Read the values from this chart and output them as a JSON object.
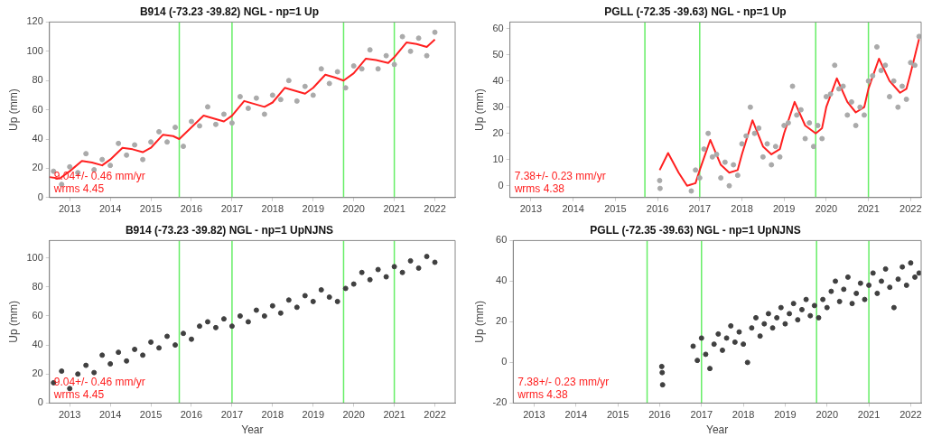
{
  "chart_data": [
    {
      "type": "scatter",
      "title": "B914 (-73.23 -39.82) NGL - np=1 Up",
      "ylabel": "Up (mm)",
      "xlim": [
        2012.5,
        2022.5
      ],
      "xticks": [
        2013,
        2014,
        2015,
        2016,
        2017,
        2018,
        2019,
        2020,
        2021,
        2022
      ],
      "ylim": [
        0,
        120
      ],
      "yticks": [
        0,
        20,
        40,
        60,
        80,
        100,
        120
      ],
      "marker": "circle",
      "ref_lines": [
        {
          "axis": "x",
          "value": 2015.7,
          "color": "#66ee66"
        },
        {
          "axis": "x",
          "value": 2017.0,
          "color": "#66ee66"
        },
        {
          "axis": "x",
          "value": 2019.75,
          "color": "#66ee66"
        },
        {
          "axis": "x",
          "value": 2021.0,
          "color": "#66ee66"
        }
      ],
      "annotations": [
        "9.04+/- 0.46 mm/yr",
        "wrms 4.45"
      ],
      "series": [
        {
          "type": "scatter",
          "color": "#aaaaaa",
          "x": [
            2012.6,
            2012.8,
            2013.0,
            2013.2,
            2013.4,
            2013.6,
            2013.8,
            2014.0,
            2014.2,
            2014.4,
            2014.6,
            2014.8,
            2015.0,
            2015.2,
            2015.4,
            2015.6,
            2015.8,
            2016.0,
            2016.2,
            2016.4,
            2016.6,
            2016.8,
            2017.0,
            2017.2,
            2017.4,
            2017.6,
            2017.8,
            2018.0,
            2018.2,
            2018.4,
            2018.6,
            2018.8,
            2019.0,
            2019.2,
            2019.4,
            2019.6,
            2019.8,
            2020.0,
            2020.2,
            2020.4,
            2020.6,
            2020.8,
            2021.0,
            2021.2,
            2021.4,
            2021.6,
            2021.8,
            2022.0
          ],
          "values": [
            18,
            9,
            21,
            17,
            30,
            19,
            26,
            22,
            37,
            29,
            36,
            26,
            38,
            45,
            38,
            48,
            35,
            52,
            49,
            62,
            50,
            57,
            51,
            69,
            61,
            68,
            57,
            70,
            67,
            80,
            66,
            76,
            70,
            88,
            78,
            86,
            75,
            90,
            88,
            101,
            88,
            97,
            91,
            110,
            100,
            109,
            97,
            113
          ]
        },
        {
          "type": "line",
          "color": "#ff2020",
          "marker": "none",
          "x": [
            2012.5,
            2012.75,
            2013.0,
            2013.3,
            2013.55,
            2013.8,
            2014.0,
            2014.3,
            2014.55,
            2014.8,
            2015.0,
            2015.3,
            2015.55,
            2015.7,
            2016.0,
            2016.3,
            2016.55,
            2016.8,
            2017.0,
            2017.3,
            2017.55,
            2017.8,
            2018.0,
            2018.3,
            2018.55,
            2018.8,
            2019.0,
            2019.3,
            2019.55,
            2019.75,
            2020.0,
            2020.3,
            2020.55,
            2020.85,
            2021.0,
            2021.3,
            2021.55,
            2021.8,
            2022.0
          ],
          "values": [
            14,
            13,
            18,
            25,
            24,
            22,
            26,
            34,
            33,
            31,
            34,
            43,
            42,
            40,
            48,
            56,
            54,
            52,
            56,
            66,
            64,
            62,
            65,
            75,
            73,
            71,
            75,
            84,
            82,
            80,
            85,
            95,
            94,
            92,
            96,
            106,
            105,
            103,
            108
          ]
        }
      ]
    },
    {
      "type": "scatter",
      "title": "PGLL (-72.35 -39.63) NGL - np=1 Up",
      "ylabel": "Up (mm)",
      "xlim": [
        2012.5,
        2022.25
      ],
      "xticks": [
        2013,
        2014,
        2015,
        2016,
        2017,
        2018,
        2019,
        2020,
        2021,
        2022
      ],
      "ylim": [
        -4.5,
        62.5
      ],
      "yticks": [
        0,
        10,
        20,
        30,
        40,
        50,
        60
      ],
      "marker": "circle",
      "ref_lines": [
        {
          "axis": "x",
          "value": 2015.7,
          "color": "#66ee66"
        },
        {
          "axis": "x",
          "value": 2017.0,
          "color": "#66ee66"
        },
        {
          "axis": "x",
          "value": 2019.75,
          "color": "#66ee66"
        },
        {
          "axis": "x",
          "value": 2021.0,
          "color": "#66ee66"
        }
      ],
      "annotations": [
        "7.38+/- 0.23 mm/yr",
        "wrms 4.38"
      ],
      "series": [
        {
          "type": "scatter",
          "color": "#aaaaaa",
          "x": [
            2016.05,
            2016.06,
            2016.8,
            2016.9,
            2017.0,
            2017.1,
            2017.2,
            2017.3,
            2017.4,
            2017.5,
            2017.6,
            2017.7,
            2017.8,
            2017.9,
            2018.0,
            2018.1,
            2018.2,
            2018.3,
            2018.4,
            2018.5,
            2018.6,
            2018.7,
            2018.8,
            2018.9,
            2019.0,
            2019.1,
            2019.2,
            2019.3,
            2019.4,
            2019.5,
            2019.6,
            2019.7,
            2019.8,
            2019.9,
            2020.0,
            2020.1,
            2020.2,
            2020.3,
            2020.4,
            2020.5,
            2020.6,
            2020.7,
            2020.8,
            2020.9,
            2021.0,
            2021.1,
            2021.2,
            2021.3,
            2021.4,
            2021.5,
            2021.6,
            2021.7,
            2021.8,
            2021.9,
            2022.0,
            2022.1,
            2022.2
          ],
          "values": [
            2,
            -1,
            -2,
            6,
            3,
            14,
            20,
            11,
            12,
            3,
            9,
            0,
            8,
            4,
            16,
            19,
            30,
            20,
            22,
            11,
            16,
            8,
            15,
            11,
            23,
            24,
            38,
            27,
            29,
            18,
            24,
            15,
            23,
            18,
            34,
            35,
            46,
            37,
            38,
            27,
            32,
            23,
            30,
            27,
            40,
            42,
            53,
            44,
            46,
            34,
            40,
            30,
            38,
            33,
            47,
            46,
            57
          ]
        },
        {
          "type": "line",
          "color": "#ff2020",
          "marker": "none",
          "x": [
            2016.05,
            2016.25,
            2016.5,
            2016.7,
            2016.9,
            2017.0,
            2017.25,
            2017.5,
            2017.7,
            2017.9,
            2018.0,
            2018.25,
            2018.5,
            2018.7,
            2018.9,
            2019.0,
            2019.25,
            2019.5,
            2019.75,
            2019.9,
            2020.0,
            2020.25,
            2020.5,
            2020.7,
            2020.9,
            2021.0,
            2021.25,
            2021.5,
            2021.75,
            2021.9,
            2022.0,
            2022.2
          ],
          "values": [
            6,
            12.5,
            5,
            0,
            1,
            6,
            17.5,
            8,
            5,
            6,
            12,
            25,
            15,
            12,
            14,
            20,
            32,
            23,
            20,
            22,
            30,
            41,
            32,
            28,
            30,
            37,
            48.5,
            40,
            35.5,
            37,
            43,
            56
          ]
        }
      ]
    },
    {
      "type": "scatter",
      "title": "B914 (-73.23 -39.82) NGL - np=1 UpNJNS",
      "xlabel": "Year",
      "ylabel": "Up (mm)",
      "xlim": [
        2012.5,
        2022.5
      ],
      "xticks": [
        2013,
        2014,
        2015,
        2016,
        2017,
        2018,
        2019,
        2020,
        2021,
        2022
      ],
      "ylim": [
        0,
        112
      ],
      "yticks": [
        0,
        20,
        40,
        60,
        80,
        100
      ],
      "marker": "circle",
      "ref_lines": [
        {
          "axis": "x",
          "value": 2015.7,
          "color": "#66ee66"
        },
        {
          "axis": "x",
          "value": 2017.0,
          "color": "#66ee66"
        },
        {
          "axis": "x",
          "value": 2019.75,
          "color": "#66ee66"
        },
        {
          "axis": "x",
          "value": 2021.0,
          "color": "#66ee66"
        }
      ],
      "annotations": [
        "9.04+/- 0.46 mm/yr",
        "wrms 4.45"
      ],
      "series": [
        {
          "type": "scatter",
          "color": "#404040",
          "x": [
            2012.6,
            2012.8,
            2013.0,
            2013.2,
            2013.4,
            2013.6,
            2013.8,
            2014.0,
            2014.2,
            2014.4,
            2014.6,
            2014.8,
            2015.0,
            2015.2,
            2015.4,
            2015.6,
            2015.8,
            2016.0,
            2016.2,
            2016.4,
            2016.6,
            2016.8,
            2017.0,
            2017.2,
            2017.4,
            2017.6,
            2017.8,
            2018.0,
            2018.2,
            2018.4,
            2018.6,
            2018.8,
            2019.0,
            2019.2,
            2019.4,
            2019.6,
            2019.8,
            2020.0,
            2020.2,
            2020.4,
            2020.6,
            2020.8,
            2021.0,
            2021.2,
            2021.4,
            2021.6,
            2021.8,
            2022.0
          ],
          "values": [
            14,
            22,
            10,
            20,
            26,
            21,
            33,
            27,
            35,
            29,
            37,
            33,
            42,
            38,
            46,
            40,
            48,
            44,
            53,
            56,
            52,
            58,
            53,
            60,
            56,
            64,
            60,
            67,
            62,
            71,
            66,
            74,
            70,
            78,
            73,
            70,
            79,
            82,
            90,
            85,
            92,
            87,
            94,
            90,
            98,
            93,
            101,
            97
          ]
        }
      ]
    },
    {
      "type": "scatter",
      "title": "PGLL (-72.35 -39.63) NGL - np=1 UpNJNS",
      "xlabel": "Year",
      "ylabel": "Up (mm)",
      "xlim": [
        2012.5,
        2022.25
      ],
      "xticks": [
        2013,
        2014,
        2015,
        2016,
        2017,
        2018,
        2019,
        2020,
        2021,
        2022
      ],
      "ylim": [
        -20,
        60
      ],
      "yticks": [
        -20,
        0,
        20,
        40,
        60
      ],
      "marker": "circle",
      "ref_lines": [
        {
          "axis": "x",
          "value": 2015.7,
          "color": "#66ee66"
        },
        {
          "axis": "x",
          "value": 2017.0,
          "color": "#66ee66"
        },
        {
          "axis": "x",
          "value": 2019.75,
          "color": "#66ee66"
        },
        {
          "axis": "x",
          "value": 2021.0,
          "color": "#66ee66"
        }
      ],
      "annotations": [
        "7.38+/- 0.23 mm/yr",
        "wrms 4.38"
      ],
      "series": [
        {
          "type": "scatter",
          "color": "#404040",
          "x": [
            2016.05,
            2016.06,
            2016.07,
            2016.8,
            2016.9,
            2017.0,
            2017.1,
            2017.2,
            2017.3,
            2017.4,
            2017.5,
            2017.6,
            2017.7,
            2017.8,
            2017.9,
            2018.0,
            2018.1,
            2018.2,
            2018.3,
            2018.4,
            2018.5,
            2018.6,
            2018.7,
            2018.8,
            2018.9,
            2019.0,
            2019.1,
            2019.2,
            2019.3,
            2019.4,
            2019.5,
            2019.6,
            2019.7,
            2019.8,
            2019.9,
            2020.0,
            2020.1,
            2020.2,
            2020.3,
            2020.4,
            2020.5,
            2020.6,
            2020.7,
            2020.8,
            2020.9,
            2021.0,
            2021.1,
            2021.2,
            2021.3,
            2021.4,
            2021.5,
            2021.6,
            2021.7,
            2021.8,
            2021.9,
            2022.0,
            2022.1,
            2022.2
          ],
          "values": [
            -2,
            -5,
            -11,
            8,
            1,
            12,
            4,
            -3,
            9,
            14,
            6,
            12,
            18,
            10,
            15,
            9,
            0,
            17,
            22,
            13,
            19,
            24,
            17,
            22,
            27,
            19,
            24,
            29,
            21,
            26,
            31,
            23,
            28,
            22,
            31,
            27,
            35,
            40,
            30,
            36,
            42,
            29,
            34,
            39,
            31,
            38,
            44,
            34,
            40,
            46,
            37,
            27,
            41,
            47,
            38,
            49,
            42,
            44
          ]
        }
      ]
    }
  ]
}
